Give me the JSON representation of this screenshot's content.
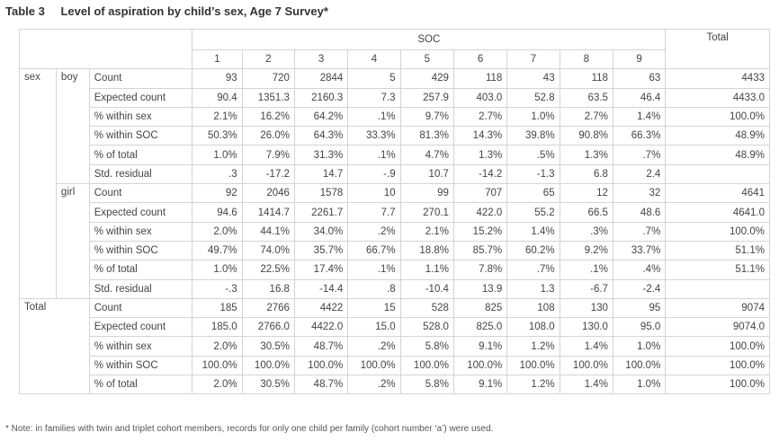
{
  "caption": {
    "number": "Table 3",
    "title": "Level of aspiration by child’s sex, Age 7 Survey*"
  },
  "header": {
    "group_label": "SOC",
    "total_label": "Total",
    "columns": [
      "1",
      "2",
      "3",
      "4",
      "5",
      "6",
      "7",
      "8",
      "9"
    ]
  },
  "dim_label": "sex",
  "groups": [
    {
      "label": "boy",
      "rows": [
        {
          "label": "Count",
          "values": [
            "93",
            "720",
            "2844",
            "5",
            "429",
            "118",
            "43",
            "118",
            "63"
          ],
          "total": "4433"
        },
        {
          "label": "Expected count",
          "values": [
            "90.4",
            "1351.3",
            "2160.3",
            "7.3",
            "257.9",
            "403.0",
            "52.8",
            "63.5",
            "46.4"
          ],
          "total": "4433.0"
        },
        {
          "label": "% within sex",
          "values": [
            "2.1%",
            "16.2%",
            "64.2%",
            ".1%",
            "9.7%",
            "2.7%",
            "1.0%",
            "2.7%",
            "1.4%"
          ],
          "total": "100.0%"
        },
        {
          "label": "% within SOC",
          "values": [
            "50.3%",
            "26.0%",
            "64.3%",
            "33.3%",
            "81.3%",
            "14.3%",
            "39.8%",
            "90.8%",
            "66.3%"
          ],
          "total": "48.9%"
        },
        {
          "label": "% of total",
          "values": [
            "1.0%",
            "7.9%",
            "31.3%",
            ".1%",
            "4.7%",
            "1.3%",
            ".5%",
            "1.3%",
            ".7%"
          ],
          "total": "48.9%"
        },
        {
          "label": "Std. residual",
          "values": [
            ".3",
            "-17.2",
            "14.7",
            "-.9",
            "10.7",
            "-14.2",
            "-1.3",
            "6.8",
            "2.4"
          ],
          "total": ""
        }
      ]
    },
    {
      "label": "girl",
      "rows": [
        {
          "label": "Count",
          "values": [
            "92",
            "2046",
            "1578",
            "10",
            "99",
            "707",
            "65",
            "12",
            "32"
          ],
          "total": "4641"
        },
        {
          "label": "Expected count",
          "values": [
            "94.6",
            "1414.7",
            "2261.7",
            "7.7",
            "270.1",
            "422.0",
            "55.2",
            "66.5",
            "48.6"
          ],
          "total": "4641.0"
        },
        {
          "label": "% within sex",
          "values": [
            "2.0%",
            "44.1%",
            "34.0%",
            ".2%",
            "2.1%",
            "15.2%",
            "1.4%",
            ".3%",
            ".7%"
          ],
          "total": "100.0%"
        },
        {
          "label": "% within SOC",
          "values": [
            "49.7%",
            "74.0%",
            "35.7%",
            "66.7%",
            "18.8%",
            "85.7%",
            "60.2%",
            "9.2%",
            "33.7%"
          ],
          "total": "51.1%"
        },
        {
          "label": "% of total",
          "values": [
            "1.0%",
            "22.5%",
            "17.4%",
            ".1%",
            "1.1%",
            "7.8%",
            ".7%",
            ".1%",
            ".4%"
          ],
          "total": "51.1%"
        },
        {
          "label": "Std. residual",
          "values": [
            "-.3",
            "16.8",
            "-14.4",
            ".8",
            "-10.4",
            "13.9",
            "1.3",
            "-6.7",
            "-2.4"
          ],
          "total": ""
        }
      ]
    }
  ],
  "total_group": {
    "label": "Total",
    "rows": [
      {
        "label": "Count",
        "values": [
          "185",
          "2766",
          "4422",
          "15",
          "528",
          "825",
          "108",
          "130",
          "95"
        ],
        "total": "9074"
      },
      {
        "label": "Expected count",
        "values": [
          "185.0",
          "2766.0",
          "4422.0",
          "15.0",
          "528.0",
          "825.0",
          "108.0",
          "130.0",
          "95.0"
        ],
        "total": "9074.0"
      },
      {
        "label": "% within sex",
        "values": [
          "2.0%",
          "30.5%",
          "48.7%",
          ".2%",
          "5.8%",
          "9.1%",
          "1.2%",
          "1.4%",
          "1.0%"
        ],
        "total": "100.0%"
      },
      {
        "label": "% within SOC",
        "values": [
          "100.0%",
          "100.0%",
          "100.0%",
          "100.0%",
          "100.0%",
          "100.0%",
          "100.0%",
          "100.0%",
          "100.0%"
        ],
        "total": "100.0%"
      },
      {
        "label": "% of total",
        "values": [
          "2.0%",
          "30.5%",
          "48.7%",
          ".2%",
          "5.8%",
          "9.1%",
          "1.2%",
          "1.4%",
          "1.0%"
        ],
        "total": "100.0%"
      }
    ]
  },
  "note": "* Note: in families with twin and triplet cohort members, records for only one child per family (cohort number ‘a’) were used."
}
